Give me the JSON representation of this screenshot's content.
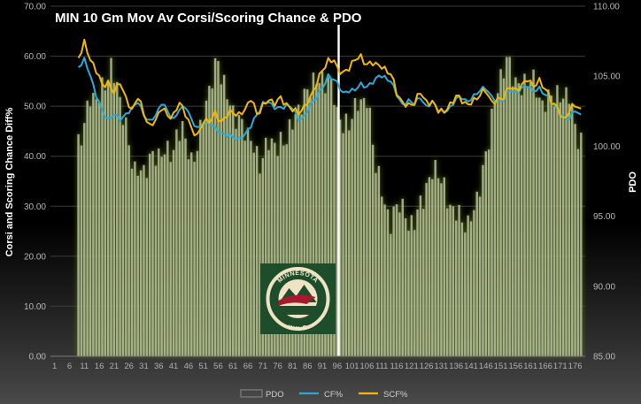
{
  "chart_data": {
    "type": "bar",
    "title": "MIN 10 Gm Mov Av Corsi/Scoring Chance & PDO",
    "ylabel": "Corsi and Scoring Chance Diff%",
    "y2label": "PDO",
    "ylim": [
      0,
      70
    ],
    "y2lim": [
      85,
      110
    ],
    "yticks": [
      "0.00",
      "10.00",
      "20.00",
      "30.00",
      "40.00",
      "50.00",
      "60.00",
      "70.00"
    ],
    "y2ticks": [
      "85.00",
      "90.00",
      "95.00",
      "100.00",
      "105.00",
      "110.00"
    ],
    "xticks": [
      1,
      6,
      11,
      16,
      21,
      26,
      31,
      36,
      41,
      46,
      51,
      56,
      61,
      66,
      71,
      76,
      81,
      86,
      91,
      96,
      101,
      106,
      111,
      116,
      121,
      126,
      131,
      136,
      141,
      146,
      151,
      156,
      161,
      166,
      171,
      176
    ],
    "xcount": 178,
    "divider_game": 96,
    "legend": [
      "PDO",
      "CF%",
      "SCF%"
    ],
    "legend_position": "bottom",
    "colors": {
      "pdo": "#aeb89a",
      "cf": "#29aadf",
      "scf": "#f5b800",
      "divider": "#ffffff"
    },
    "anchors": {
      "pdo": [
        [
          1,
          85
        ],
        [
          8,
          85
        ],
        [
          9,
          99.8
        ],
        [
          11,
          101.2
        ],
        [
          13,
          103.5
        ],
        [
          16,
          104.0
        ],
        [
          20,
          105.2
        ],
        [
          22,
          104.0
        ],
        [
          25,
          101.5
        ],
        [
          28,
          98.5
        ],
        [
          31,
          97.8
        ],
        [
          35,
          99.5
        ],
        [
          38,
          100.0
        ],
        [
          41,
          99.5
        ],
        [
          44,
          101.2
        ],
        [
          47,
          99.0
        ],
        [
          51,
          102.0
        ],
        [
          54,
          104.5
        ],
        [
          56,
          106.0
        ],
        [
          58,
          104.8
        ],
        [
          61,
          102.5
        ],
        [
          64,
          101.0
        ],
        [
          67,
          100.5
        ],
        [
          70,
          99.2
        ],
        [
          73,
          100.2
        ],
        [
          76,
          99.5
        ],
        [
          79,
          101.0
        ],
        [
          82,
          102.5
        ],
        [
          85,
          103.0
        ],
        [
          88,
          104.5
        ],
        [
          91,
          105.2
        ],
        [
          93,
          104.8
        ],
        [
          95,
          103.5
        ],
        [
          96,
          102.0
        ],
        [
          98,
          101.0
        ],
        [
          100,
          102.0
        ],
        [
          103,
          103.5
        ],
        [
          106,
          103.0
        ],
        [
          109,
          98.5
        ],
        [
          111,
          97.0
        ],
        [
          114,
          94.8
        ],
        [
          117,
          95.8
        ],
        [
          120,
          94.0
        ],
        [
          124,
          96.2
        ],
        [
          127,
          97.5
        ],
        [
          130,
          98.0
        ],
        [
          133,
          96.5
        ],
        [
          136,
          95.5
        ],
        [
          138,
          94.5
        ],
        [
          140,
          93.8
        ],
        [
          142,
          95.5
        ],
        [
          145,
          98.5
        ],
        [
          148,
          102.0
        ],
        [
          151,
          104.5
        ],
        [
          153,
          106.2
        ],
        [
          155,
          105.5
        ],
        [
          158,
          104.2
        ],
        [
          161,
          104.5
        ],
        [
          165,
          103.2
        ],
        [
          168,
          104.0
        ],
        [
          171,
          103.0
        ],
        [
          174,
          103.6
        ],
        [
          176,
          101.5
        ],
        [
          178,
          100.8
        ]
      ],
      "cf": [
        [
          9,
          58
        ],
        [
          11,
          59.5
        ],
        [
          13,
          56
        ],
        [
          15,
          52
        ],
        [
          17,
          49
        ],
        [
          19,
          47.5
        ],
        [
          21,
          48.5
        ],
        [
          23,
          47.5
        ],
        [
          25,
          48
        ],
        [
          27,
          49.5
        ],
        [
          29,
          51
        ],
        [
          31,
          48.5
        ],
        [
          33,
          47
        ],
        [
          35,
          48
        ],
        [
          37,
          50.5
        ],
        [
          39,
          49
        ],
        [
          41,
          47.5
        ],
        [
          43,
          49.5
        ],
        [
          45,
          50
        ],
        [
          47,
          47
        ],
        [
          49,
          45.5
        ],
        [
          51,
          46.5
        ],
        [
          53,
          47
        ],
        [
          55,
          45.5
        ],
        [
          57,
          44.5
        ],
        [
          59,
          44
        ],
        [
          61,
          44
        ],
        [
          63,
          43.5
        ],
        [
          65,
          44.5
        ],
        [
          67,
          46
        ],
        [
          69,
          48
        ],
        [
          71,
          50.5
        ],
        [
          73,
          51
        ],
        [
          75,
          50
        ],
        [
          77,
          49.5
        ],
        [
          79,
          50
        ],
        [
          81,
          49.5
        ],
        [
          83,
          47.5
        ],
        [
          85,
          48
        ],
        [
          87,
          50.5
        ],
        [
          89,
          51.5
        ],
        [
          91,
          53.5
        ],
        [
          93,
          56
        ],
        [
          95,
          55.5
        ],
        [
          96,
          55
        ],
        [
          98,
          52.5
        ],
        [
          100,
          53
        ],
        [
          102,
          53
        ],
        [
          104,
          54.5
        ],
        [
          106,
          54
        ],
        [
          108,
          55
        ],
        [
          110,
          56
        ],
        [
          112,
          55.5
        ],
        [
          114,
          55
        ],
        [
          116,
          52.5
        ],
        [
          118,
          50.5
        ],
        [
          120,
          51
        ],
        [
          122,
          50.5
        ],
        [
          124,
          51.5
        ],
        [
          126,
          50
        ],
        [
          128,
          51
        ],
        [
          130,
          49.5
        ],
        [
          132,
          48.5
        ],
        [
          134,
          49.5
        ],
        [
          136,
          51.5
        ],
        [
          138,
          52
        ],
        [
          140,
          51
        ],
        [
          142,
          52
        ],
        [
          144,
          53
        ],
        [
          146,
          53.5
        ],
        [
          148,
          52
        ],
        [
          150,
          51
        ],
        [
          152,
          51.5
        ],
        [
          154,
          53
        ],
        [
          156,
          52.5
        ],
        [
          158,
          53.5
        ],
        [
          160,
          54.5
        ],
        [
          162,
          53
        ],
        [
          164,
          53.5
        ],
        [
          166,
          52
        ],
        [
          168,
          51
        ],
        [
          170,
          49.5
        ],
        [
          172,
          48
        ],
        [
          174,
          47.5
        ],
        [
          176,
          49
        ],
        [
          178,
          48
        ]
      ],
      "scf": [
        [
          9,
          60
        ],
        [
          11,
          63
        ],
        [
          13,
          59
        ],
        [
          15,
          57
        ],
        [
          17,
          54
        ],
        [
          19,
          55
        ],
        [
          21,
          53
        ],
        [
          23,
          55
        ],
        [
          25,
          51
        ],
        [
          27,
          49
        ],
        [
          29,
          52
        ],
        [
          31,
          49
        ],
        [
          33,
          46
        ],
        [
          35,
          47
        ],
        [
          37,
          49.5
        ],
        [
          39,
          48
        ],
        [
          41,
          48.5
        ],
        [
          43,
          51
        ],
        [
          45,
          48.5
        ],
        [
          47,
          45
        ],
        [
          49,
          44
        ],
        [
          51,
          47
        ],
        [
          53,
          47.5
        ],
        [
          55,
          48.5
        ],
        [
          57,
          46.5
        ],
        [
          59,
          48
        ],
        [
          61,
          49
        ],
        [
          63,
          48.5
        ],
        [
          65,
          49.5
        ],
        [
          67,
          51.5
        ],
        [
          69,
          48
        ],
        [
          71,
          50
        ],
        [
          73,
          51.5
        ],
        [
          75,
          51
        ],
        [
          77,
          51.5
        ],
        [
          79,
          50
        ],
        [
          81,
          49
        ],
        [
          83,
          49
        ],
        [
          85,
          50
        ],
        [
          87,
          52
        ],
        [
          89,
          54
        ],
        [
          91,
          57
        ],
        [
          93,
          59
        ],
        [
          95,
          59.5
        ],
        [
          96,
          58
        ],
        [
          98,
          56.5
        ],
        [
          100,
          57.5
        ],
        [
          102,
          59
        ],
        [
          104,
          60
        ],
        [
          106,
          58.5
        ],
        [
          108,
          59
        ],
        [
          110,
          58
        ],
        [
          112,
          57
        ],
        [
          114,
          56.5
        ],
        [
          116,
          53
        ],
        [
          118,
          51
        ],
        [
          120,
          50
        ],
        [
          122,
          50.5
        ],
        [
          124,
          52.5
        ],
        [
          126,
          51
        ],
        [
          128,
          51
        ],
        [
          130,
          49.5
        ],
        [
          132,
          48.5
        ],
        [
          134,
          50
        ],
        [
          136,
          52
        ],
        [
          138,
          51.5
        ],
        [
          140,
          50.5
        ],
        [
          142,
          51
        ],
        [
          144,
          52
        ],
        [
          146,
          53
        ],
        [
          148,
          51
        ],
        [
          150,
          51.5
        ],
        [
          152,
          52
        ],
        [
          154,
          53.5
        ],
        [
          156,
          53
        ],
        [
          158,
          54
        ],
        [
          160,
          56
        ],
        [
          162,
          54
        ],
        [
          164,
          55
        ],
        [
          166,
          53
        ],
        [
          168,
          51
        ],
        [
          170,
          50
        ],
        [
          172,
          47.5
        ],
        [
          174,
          49
        ],
        [
          176,
          50
        ],
        [
          178,
          49
        ]
      ]
    }
  },
  "logo": {
    "line1": "MINNESOTA",
    "line2": "WILD",
    "colors": {
      "green": "#1e4d2b",
      "cream": "#efe3c4",
      "red": "#a6192e"
    }
  }
}
